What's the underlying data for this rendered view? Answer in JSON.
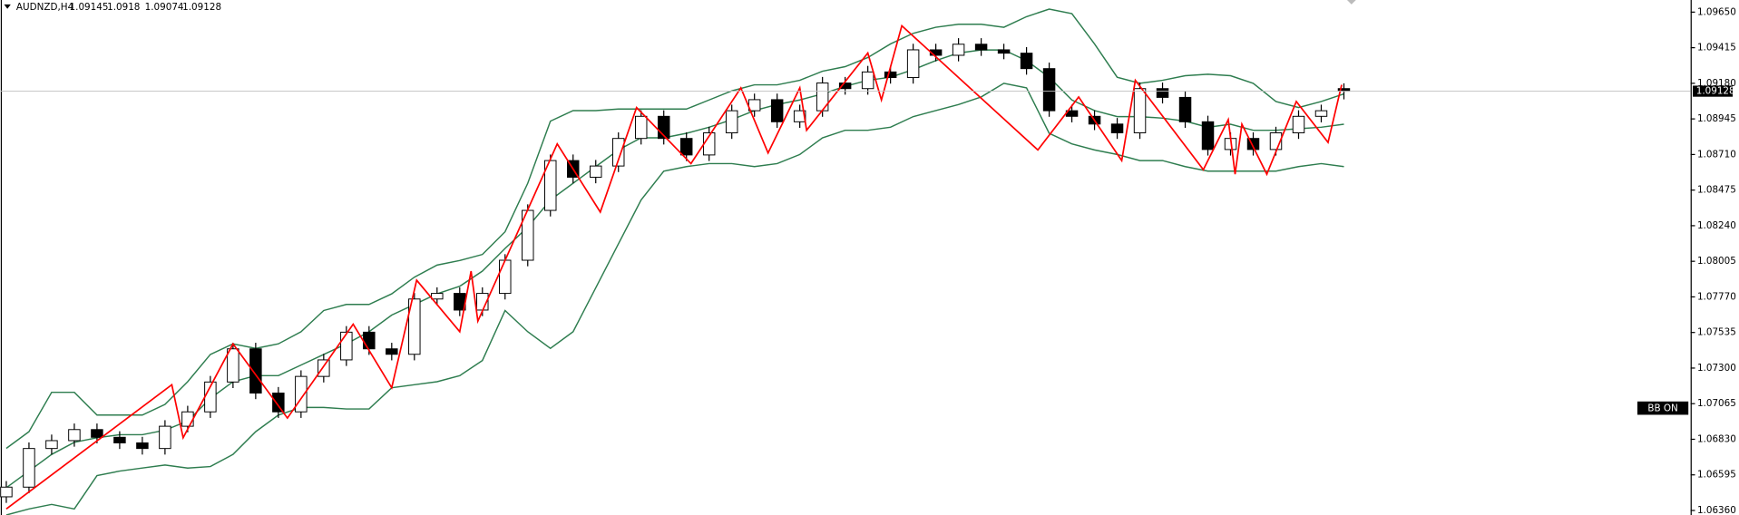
{
  "chart_data": {
    "type": "candlestick",
    "title": "AUDNZD,H4",
    "annotation": "BB ON",
    "open": [
      1.0645,
      1.06514,
      1.06769,
      1.06821,
      1.06894,
      1.06843,
      1.06806,
      1.06769,
      1.06916,
      1.07011,
      1.07208,
      1.07427,
      1.07135,
      1.07011,
      1.07245,
      1.07354,
      1.07537,
      1.07427,
      1.07391,
      1.07756,
      1.07793,
      1.07683,
      1.07793,
      1.08012,
      1.08341,
      1.0867,
      1.0856,
      1.08634,
      1.08816,
      1.08962,
      1.08816,
      1.08707,
      1.08853,
      1.08999,
      1.09072,
      1.08926,
      1.08999,
      1.09182,
      1.09145,
      1.09255,
      1.09218,
      1.09401,
      1.09365,
      1.09438,
      1.09401,
      1.09379,
      1.09277,
      1.08999,
      1.08962,
      1.08911,
      1.08853,
      1.09145,
      1.09087,
      1.08926,
      1.08743,
      1.08816,
      1.08743,
      1.08853,
      1.08962,
      1.09145
    ],
    "high": [
      1.06554,
      1.06809,
      1.06861,
      1.06934,
      1.06934,
      1.06883,
      1.06846,
      1.06956,
      1.07051,
      1.07248,
      1.07467,
      1.07467,
      1.07175,
      1.07285,
      1.07394,
      1.07577,
      1.07577,
      1.07467,
      1.07796,
      1.07833,
      1.07833,
      1.07833,
      1.08052,
      1.08381,
      1.0871,
      1.0871,
      1.08674,
      1.08856,
      1.09002,
      1.09002,
      1.08856,
      1.08893,
      1.09039,
      1.09112,
      1.09112,
      1.09039,
      1.09222,
      1.09222,
      1.09295,
      1.09295,
      1.09441,
      1.09441,
      1.09478,
      1.09478,
      1.09441,
      1.09419,
      1.09317,
      1.09039,
      1.09002,
      1.08951,
      1.09185,
      1.09185,
      1.09127,
      1.08966,
      1.08856,
      1.08856,
      1.08893,
      1.09002,
      1.09039,
      1.0918
    ],
    "low": [
      1.0641,
      1.06474,
      1.06729,
      1.06781,
      1.06803,
      1.06766,
      1.06729,
      1.06729,
      1.06876,
      1.06971,
      1.07168,
      1.07095,
      1.06971,
      1.06971,
      1.07205,
      1.07314,
      1.07387,
      1.07351,
      1.07351,
      1.07716,
      1.07643,
      1.07643,
      1.07753,
      1.07972,
      1.08301,
      1.0852,
      1.0852,
      1.08594,
      1.08776,
      1.08776,
      1.08667,
      1.08667,
      1.08813,
      1.08959,
      1.08886,
      1.08886,
      1.08959,
      1.09105,
      1.09105,
      1.09178,
      1.09178,
      1.09325,
      1.09325,
      1.09361,
      1.09339,
      1.09237,
      1.08959,
      1.08922,
      1.08871,
      1.08813,
      1.08813,
      1.09047,
      1.08886,
      1.08703,
      1.08703,
      1.08703,
      1.08703,
      1.08813,
      1.08922,
      1.09074
    ],
    "close": [
      1.06514,
      1.06769,
      1.06821,
      1.06894,
      1.06843,
      1.06806,
      1.06769,
      1.06916,
      1.07011,
      1.07208,
      1.07427,
      1.07135,
      1.07011,
      1.07245,
      1.07354,
      1.07537,
      1.07427,
      1.07391,
      1.07756,
      1.07793,
      1.07683,
      1.07793,
      1.08012,
      1.08341,
      1.0867,
      1.0856,
      1.08634,
      1.08816,
      1.08962,
      1.08816,
      1.08707,
      1.08853,
      1.08999,
      1.09072,
      1.08926,
      1.08999,
      1.09182,
      1.09145,
      1.09255,
      1.09218,
      1.09401,
      1.09365,
      1.09438,
      1.09401,
      1.09379,
      1.09277,
      1.08999,
      1.08962,
      1.08911,
      1.08853,
      1.09145,
      1.09087,
      1.08926,
      1.08743,
      1.08816,
      1.08743,
      1.08853,
      1.08962,
      1.08999,
      1.09128
    ],
    "up_color": "#ffffff",
    "down_color": "#000000",
    "bands": {
      "color": "#2e7d4f",
      "upper": [
        1.0677,
        1.0688,
        1.0714,
        1.0714,
        1.0699,
        1.0699,
        1.0699,
        1.0706,
        1.0721,
        1.0739,
        1.0746,
        1.0743,
        1.0746,
        1.0754,
        1.0768,
        1.0772,
        1.0772,
        1.0779,
        1.079,
        1.0798,
        1.0801,
        1.0805,
        1.082,
        1.0852,
        1.0893,
        1.09,
        1.09,
        1.0901,
        1.0901,
        1.0901,
        1.0901,
        1.0907,
        1.0913,
        1.0917,
        1.0917,
        1.092,
        1.0926,
        1.0929,
        1.0935,
        1.0944,
        1.0951,
        1.0955,
        1.0957,
        1.0957,
        1.0955,
        1.0962,
        1.0967,
        1.0964,
        1.0944,
        1.0922,
        1.0918,
        1.092,
        1.0923,
        1.0924,
        1.0923,
        1.0918,
        1.0906,
        1.0902,
        1.0906,
        1.0911
      ],
      "middle": [
        1.0651,
        1.0662,
        1.0673,
        1.0681,
        1.0684,
        1.0686,
        1.0686,
        1.0689,
        1.0695,
        1.071,
        1.0721,
        1.0725,
        1.0725,
        1.0732,
        1.0739,
        1.0746,
        1.0754,
        1.0765,
        1.0772,
        1.0779,
        1.0784,
        1.0794,
        1.0809,
        1.0823,
        1.0841,
        1.0852,
        1.0863,
        1.0874,
        1.0882,
        1.0882,
        1.0885,
        1.0889,
        1.0894,
        1.09,
        1.0904,
        1.0907,
        1.0911,
        1.0916,
        1.092,
        1.0922,
        1.0927,
        1.0933,
        1.0938,
        1.094,
        1.094,
        1.0933,
        1.0922,
        1.0907,
        1.09,
        1.0896,
        1.0896,
        1.0895,
        1.0893,
        1.0889,
        1.0891,
        1.0887,
        1.0887,
        1.0888,
        1.0889,
        1.0891
      ],
      "lower": [
        1.0633,
        1.0637,
        1.064,
        1.0637,
        1.0659,
        1.0662,
        1.0664,
        1.0666,
        1.0664,
        1.0665,
        1.0673,
        1.0688,
        1.0699,
        1.0704,
        1.0704,
        1.0703,
        1.0703,
        1.0717,
        1.0719,
        1.0721,
        1.0725,
        1.0735,
        1.0768,
        1.0754,
        1.0743,
        1.0754,
        1.0783,
        1.0812,
        1.0841,
        1.086,
        1.0863,
        1.0865,
        1.0865,
        1.0863,
        1.0865,
        1.0871,
        1.0882,
        1.0887,
        1.0887,
        1.0889,
        1.0896,
        1.09,
        1.0904,
        1.0909,
        1.0918,
        1.0915,
        1.0885,
        1.0878,
        1.0874,
        1.0871,
        1.0867,
        1.0867,
        1.0863,
        1.086,
        1.086,
        1.086,
        1.086,
        1.0863,
        1.0865,
        1.0863
      ]
    },
    "zigzag": {
      "color": "#ff0000",
      "x": [
        0,
        7.3,
        7.8,
        10,
        12.4,
        15.3,
        17,
        18.1,
        20,
        20.5,
        20.8,
        24.3,
        26.2,
        27.8,
        30.2,
        32.4,
        33.6,
        35,
        35.3,
        38,
        38.6,
        39.5,
        45.5,
        47.3,
        49.2,
        49.8,
        52.8,
        53.9,
        54.2,
        54.5,
        55.6,
        56.9,
        58.3,
        58.9
      ],
      "values": [
        1.0637,
        1.0719,
        1.0684,
        1.0746,
        1.0697,
        1.0759,
        1.0717,
        1.0788,
        1.0754,
        1.0794,
        1.0761,
        1.0878,
        1.0833,
        1.0902,
        1.0865,
        1.0915,
        1.0872,
        1.0915,
        1.0887,
        1.0938,
        1.0907,
        1.0956,
        1.0874,
        1.0909,
        1.0867,
        1.092,
        1.0861,
        1.0894,
        1.0858,
        1.0891,
        1.0858,
        1.0906,
        1.0879,
        1.0917
      ]
    },
    "ylim": [
      1.0633,
      1.0973
    ],
    "yticks": [
      {
        "value": 1.0965,
        "label": "1.09650"
      },
      {
        "value": 1.09415,
        "label": "1.09415"
      },
      {
        "value": 1.0918,
        "label": "1.09180"
      },
      {
        "value": 1.08945,
        "label": "1.08945"
      },
      {
        "value": 1.0871,
        "label": "1.08710"
      },
      {
        "value": 1.08475,
        "label": "1.08475"
      },
      {
        "value": 1.0824,
        "label": "1.08240"
      },
      {
        "value": 1.08005,
        "label": "1.08005"
      },
      {
        "value": 1.0777,
        "label": "1.07770"
      },
      {
        "value": 1.07535,
        "label": "1.07535"
      },
      {
        "value": 1.073,
        "label": "1.07300"
      },
      {
        "value": 1.07065,
        "label": "1.07065"
      },
      {
        "value": 1.0683,
        "label": "1.06830"
      },
      {
        "value": 1.06595,
        "label": "1.06595"
      },
      {
        "value": 1.0636,
        "label": "1.06360"
      }
    ]
  }
}
